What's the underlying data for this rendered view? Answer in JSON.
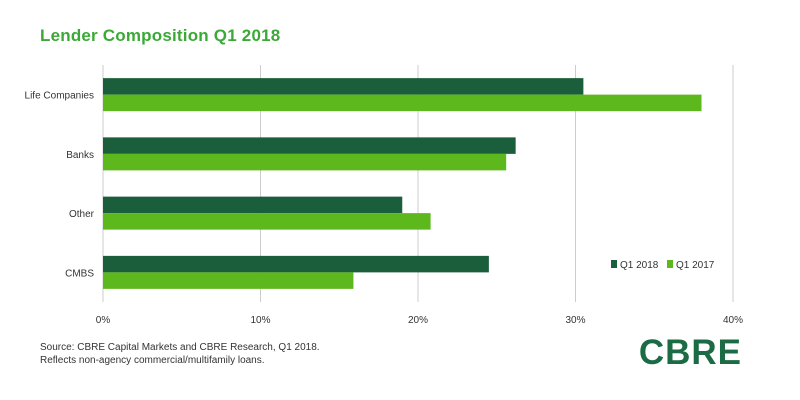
{
  "title": "Lender Composition Q1 2018",
  "source_line1": "Source: CBRE Capital Markets and CBRE Research, Q1 2018.",
  "source_line2": "Reflects non-agency commercial/multifamily loans.",
  "logo_text": "CBRE",
  "colors": {
    "title": "#3aa935",
    "q1_2018": "#1b5e3b",
    "q1_2017": "#5cb81c",
    "grid": "#cccccc",
    "logo": "#1b6b45"
  },
  "chart_data": {
    "type": "bar",
    "orientation": "horizontal",
    "title": "Lender Composition Q1 2018",
    "categories": [
      "Life Companies",
      "Banks",
      "Other",
      "CMBS"
    ],
    "series": [
      {
        "name": "Q1 2018",
        "values": [
          30.5,
          26.2,
          19.0,
          24.5
        ],
        "color": "#1b5e3b"
      },
      {
        "name": "Q1 2017",
        "values": [
          38.0,
          25.6,
          20.8,
          15.9
        ],
        "color": "#5cb81c"
      }
    ],
    "xlim": [
      0,
      40
    ],
    "xticks": [
      0,
      10,
      20,
      30,
      40
    ],
    "xtick_labels": [
      "0%",
      "10%",
      "20%",
      "30%",
      "40%"
    ],
    "grid": "vertical",
    "legend_position": "bottom-right"
  }
}
